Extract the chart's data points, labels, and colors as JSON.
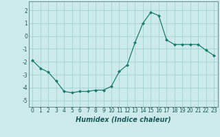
{
  "x": [
    0,
    1,
    2,
    3,
    4,
    5,
    6,
    7,
    8,
    9,
    10,
    11,
    12,
    13,
    14,
    15,
    16,
    17,
    18,
    19,
    20,
    21,
    22,
    23
  ],
  "y": [
    -1.9,
    -2.5,
    -2.8,
    -3.5,
    -4.3,
    -4.4,
    -4.3,
    -4.3,
    -4.2,
    -4.2,
    -3.9,
    -2.75,
    -2.25,
    -0.5,
    1.0,
    1.85,
    1.6,
    -0.3,
    -0.65,
    -0.65,
    -0.65,
    -0.65,
    -1.1,
    -1.5
  ],
  "line_color": "#1a7a6e",
  "marker": "D",
  "marker_size": 2.0,
  "bg_color": "#cceaea",
  "grid_color": "#99cccc",
  "xlabel": "Humidex (Indice chaleur)",
  "xlim": [
    -0.5,
    23.5
  ],
  "ylim": [
    -5.5,
    2.7
  ],
  "xticks": [
    0,
    1,
    2,
    3,
    4,
    5,
    6,
    7,
    8,
    9,
    10,
    11,
    12,
    13,
    14,
    15,
    16,
    17,
    18,
    19,
    20,
    21,
    22,
    23
  ],
  "yticks": [
    -5,
    -4,
    -3,
    -2,
    -1,
    0,
    1,
    2
  ],
  "tick_labelsize": 5.5,
  "xlabel_fontsize": 7.0
}
